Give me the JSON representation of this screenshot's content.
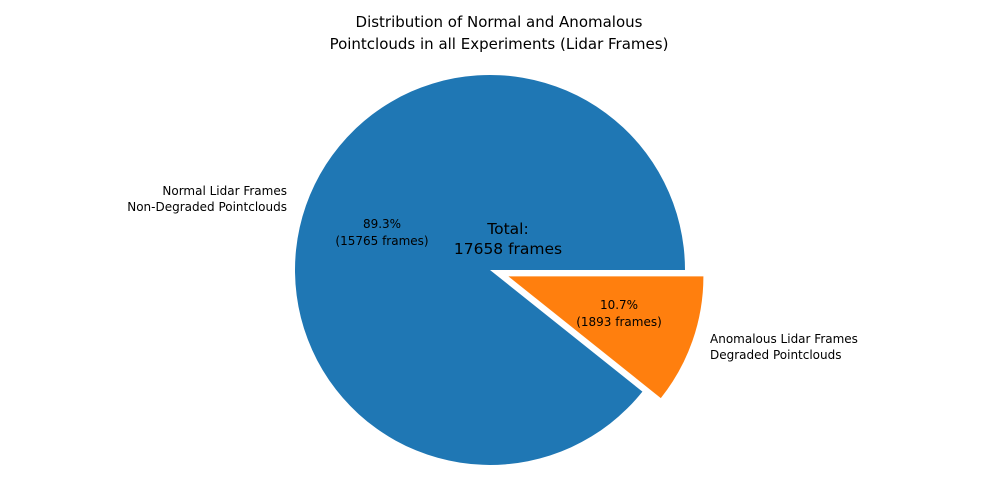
{
  "chart_data": {
    "type": "pie",
    "title": "Distribution of Normal and Anomalous\nPointclouds in all Experiments (Lidar Frames)",
    "categories": [
      "Normal Lidar Frames Non-Degraded Pointclouds",
      "Anomalous Lidar Frames Degraded Pointclouds"
    ],
    "values": [
      15765,
      1893
    ],
    "total": 17658,
    "total_label": "Total:\n17658 frames",
    "startangle": 0,
    "counterclock": true,
    "legend": "none",
    "background_color": "#ffffff",
    "text_color": "#000000",
    "slices": [
      {
        "name": "normal",
        "label": "Normal Lidar Frames\nNon-Degraded Pointclouds",
        "value": 15765,
        "pct": 89.3,
        "pct_label": "89.3%\n(15765 frames)",
        "color": "#1f77b4",
        "explode": 0
      },
      {
        "name": "anomalous",
        "label": "Anomalous Lidar Frames\nDegraded Pointclouds",
        "value": 1893,
        "pct": 10.7,
        "pct_label": "10.7%\n(1893 frames)",
        "color": "#ff7f0e",
        "explode": 0.1
      }
    ]
  }
}
